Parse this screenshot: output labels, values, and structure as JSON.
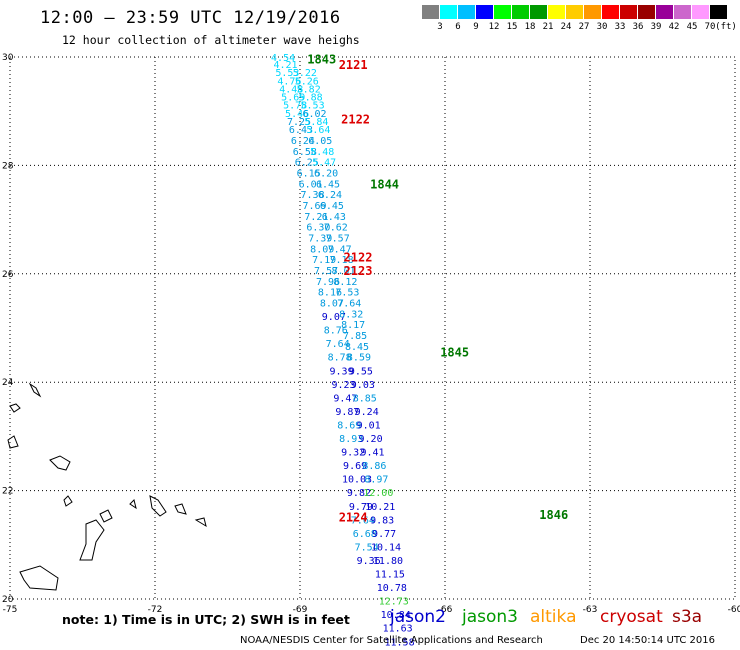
{
  "header": {
    "time_range": "12:00 — 23:59 UTC 12/19/2016",
    "subtitle": "12 hour collection of altimeter wave heighs"
  },
  "legend": {
    "unit": "(ft)",
    "colors": [
      "#808080",
      "#00ffff",
      "#00bfff",
      "#0000ff",
      "#00ff00",
      "#00cc00",
      "#009900",
      "#ffff00",
      "#ffcc00",
      "#ff9900",
      "#ff0000",
      "#cc0000",
      "#990000",
      "#990099",
      "#cc66cc",
      "#ff99ff",
      "#000000"
    ],
    "labels": [
      "3",
      "6",
      "9",
      "12",
      "15",
      "18",
      "21",
      "24",
      "27",
      "30",
      "33",
      "36",
      "39",
      "42",
      "45",
      "70"
    ]
  },
  "axes": {
    "x_ticks": [
      "-75",
      "-72",
      "-69",
      "-66",
      "-63",
      "-60"
    ],
    "y_ticks": [
      "30",
      "28",
      "26",
      "24",
      "22",
      "20"
    ]
  },
  "tracks": [
    {
      "sat": "jason2",
      "color_class": "track-a",
      "points": [
        {
          "lon": -69.35,
          "lat": 30.0,
          "v": "4.54"
        },
        {
          "lon": -69.3,
          "lat": 29.87,
          "v": "4.21"
        },
        {
          "lon": -69.26,
          "lat": 29.72,
          "v": "5.53"
        },
        {
          "lon": -69.22,
          "lat": 29.57,
          "v": "4.76"
        },
        {
          "lon": -69.18,
          "lat": 29.42,
          "v": "4.48"
        },
        {
          "lon": -69.14,
          "lat": 29.27,
          "v": "5.69"
        },
        {
          "lon": -69.1,
          "lat": 29.12,
          "v": "5.78"
        },
        {
          "lon": -69.06,
          "lat": 28.97,
          "v": "5.46"
        },
        {
          "lon": -69.02,
          "lat": 28.82,
          "v": "7.25"
        },
        {
          "lon": -68.98,
          "lat": 28.67,
          "v": "6.43"
        },
        {
          "lon": -68.94,
          "lat": 28.47,
          "v": "6.24"
        },
        {
          "lon": -68.9,
          "lat": 28.27,
          "v": "6.58"
        },
        {
          "lon": -68.86,
          "lat": 28.07,
          "v": "6.25"
        },
        {
          "lon": -68.82,
          "lat": 27.87,
          "v": "6.15"
        },
        {
          "lon": -68.78,
          "lat": 27.67,
          "v": "6.01"
        },
        {
          "lon": -68.74,
          "lat": 27.47,
          "v": "7.38"
        },
        {
          "lon": -68.7,
          "lat": 27.27,
          "v": "7.69"
        },
        {
          "lon": -68.66,
          "lat": 27.07,
          "v": "7.21"
        },
        {
          "lon": -68.62,
          "lat": 26.87,
          "v": "6.30"
        },
        {
          "lon": -68.58,
          "lat": 26.67,
          "v": "7.39"
        },
        {
          "lon": -68.54,
          "lat": 26.47,
          "v": "8.09"
        },
        {
          "lon": -68.5,
          "lat": 26.27,
          "v": "7.19"
        },
        {
          "lon": -68.46,
          "lat": 26.07,
          "v": "7.57"
        },
        {
          "lon": -68.42,
          "lat": 25.87,
          "v": "7.96"
        },
        {
          "lon": -68.38,
          "lat": 25.67,
          "v": "8.16"
        },
        {
          "lon": -68.34,
          "lat": 25.47,
          "v": "8.07"
        },
        {
          "lon": -68.3,
          "lat": 25.22,
          "v": "9.07"
        },
        {
          "lon": -68.26,
          "lat": 24.97,
          "v": "8.76"
        },
        {
          "lon": -68.22,
          "lat": 24.72,
          "v": "7.64"
        },
        {
          "lon": -68.18,
          "lat": 24.47,
          "v": "8.78"
        },
        {
          "lon": -68.14,
          "lat": 24.22,
          "v": "9.39"
        },
        {
          "lon": -68.1,
          "lat": 23.97,
          "v": "9.23"
        },
        {
          "lon": -68.06,
          "lat": 23.72,
          "v": "9.47"
        },
        {
          "lon": -68.02,
          "lat": 23.47,
          "v": "9.87"
        },
        {
          "lon": -67.98,
          "lat": 23.22,
          "v": "8.69"
        },
        {
          "lon": -67.94,
          "lat": 22.97,
          "v": "8.93"
        },
        {
          "lon": -67.9,
          "lat": 22.72,
          "v": "9.32"
        },
        {
          "lon": -67.86,
          "lat": 22.47,
          "v": "9.69"
        },
        {
          "lon": -67.82,
          "lat": 22.22,
          "v": "10.03"
        },
        {
          "lon": -67.78,
          "lat": 21.97,
          "v": "9.82"
        },
        {
          "lon": -67.74,
          "lat": 21.72,
          "v": "9.79"
        },
        {
          "lon": -67.7,
          "lat": 21.47,
          "v": "7.64"
        },
        {
          "lon": -67.66,
          "lat": 21.22,
          "v": "6.68"
        },
        {
          "lon": -67.62,
          "lat": 20.97,
          "v": "7.54"
        },
        {
          "lon": -67.58,
          "lat": 20.72,
          "v": "9.36"
        }
      ]
    },
    {
      "sat": "jason3",
      "color_class": "track-b",
      "points": [
        {
          "lon": -68.9,
          "lat": 29.72,
          "v": "5.22"
        },
        {
          "lon": -68.86,
          "lat": 29.57,
          "v": "5.26"
        },
        {
          "lon": -68.82,
          "lat": 29.42,
          "v": "5.82"
        },
        {
          "lon": -68.78,
          "lat": 29.27,
          "v": "5.88"
        },
        {
          "lon": -68.74,
          "lat": 29.12,
          "v": "5.53"
        },
        {
          "lon": -68.7,
          "lat": 28.97,
          "v": "6.02"
        },
        {
          "lon": -68.66,
          "lat": 28.82,
          "v": "5.84"
        },
        {
          "lon": -68.62,
          "lat": 28.67,
          "v": "5.64"
        },
        {
          "lon": -68.58,
          "lat": 28.47,
          "v": "6.05"
        },
        {
          "lon": -68.54,
          "lat": 28.27,
          "v": "5.48"
        },
        {
          "lon": -68.5,
          "lat": 28.07,
          "v": "5.47"
        },
        {
          "lon": -68.46,
          "lat": 27.87,
          "v": "6.20"
        },
        {
          "lon": -68.42,
          "lat": 27.67,
          "v": "6.45"
        },
        {
          "lon": -68.38,
          "lat": 27.47,
          "v": "6.24"
        },
        {
          "lon": -68.34,
          "lat": 27.27,
          "v": "6.45"
        },
        {
          "lon": -68.3,
          "lat": 27.07,
          "v": "6.43"
        },
        {
          "lon": -68.26,
          "lat": 26.87,
          "v": "7.62"
        },
        {
          "lon": -68.22,
          "lat": 26.67,
          "v": "7.57"
        },
        {
          "lon": -68.18,
          "lat": 26.47,
          "v": "7.47"
        },
        {
          "lon": -68.14,
          "lat": 26.27,
          "v": "7.18"
        },
        {
          "lon": -68.1,
          "lat": 26.07,
          "v": "8.01"
        },
        {
          "lon": -68.06,
          "lat": 25.87,
          "v": "8.12"
        },
        {
          "lon": -68.02,
          "lat": 25.67,
          "v": "7.53"
        },
        {
          "lon": -67.98,
          "lat": 25.47,
          "v": "7.64"
        },
        {
          "lon": -67.94,
          "lat": 25.27,
          "v": "8.32"
        },
        {
          "lon": -67.9,
          "lat": 25.07,
          "v": "8.17"
        },
        {
          "lon": -67.86,
          "lat": 24.87,
          "v": "7.85"
        },
        {
          "lon": -67.82,
          "lat": 24.67,
          "v": "8.45"
        },
        {
          "lon": -67.78,
          "lat": 24.47,
          "v": "8.59"
        },
        {
          "lon": -67.74,
          "lat": 24.22,
          "v": "9.55"
        },
        {
          "lon": -67.7,
          "lat": 23.97,
          "v": "9.03"
        },
        {
          "lon": -67.66,
          "lat": 23.72,
          "v": "8.85"
        },
        {
          "lon": -67.62,
          "lat": 23.47,
          "v": "9.24"
        },
        {
          "lon": -67.58,
          "lat": 23.22,
          "v": "9.01"
        },
        {
          "lon": -67.54,
          "lat": 22.97,
          "v": "9.20"
        },
        {
          "lon": -67.5,
          "lat": 22.72,
          "v": "9.41"
        },
        {
          "lon": -67.46,
          "lat": 22.47,
          "v": "8.86"
        },
        {
          "lon": -67.42,
          "lat": 22.22,
          "v": "8.97"
        },
        {
          "lon": -67.38,
          "lat": 21.97,
          "v": "12.00"
        },
        {
          "lon": -67.34,
          "lat": 21.72,
          "v": "10.21"
        },
        {
          "lon": -67.3,
          "lat": 21.47,
          "v": "9.83"
        },
        {
          "lon": -67.26,
          "lat": 21.22,
          "v": "9.77"
        },
        {
          "lon": -67.22,
          "lat": 20.97,
          "v": "10.14"
        },
        {
          "lon": -67.18,
          "lat": 20.72,
          "v": "11.80"
        },
        {
          "lon": -67.14,
          "lat": 20.47,
          "v": "11.15"
        },
        {
          "lon": -67.1,
          "lat": 20.22,
          "v": "10.78"
        },
        {
          "lon": -67.06,
          "lat": 19.97,
          "v": "12.73"
        },
        {
          "lon": -67.02,
          "lat": 19.72,
          "v": "10.84"
        },
        {
          "lon": -66.98,
          "lat": 19.47,
          "v": "11.63"
        },
        {
          "lon": -66.94,
          "lat": 19.22,
          "v": "11.58"
        }
      ]
    }
  ],
  "time_labels": [
    {
      "t": "1843",
      "kind": "green"
    },
    {
      "t": "2121",
      "kind": "red"
    },
    {
      "t": "2122",
      "kind": "red"
    },
    {
      "t": "1844",
      "kind": "green"
    },
    {
      "t": "2122",
      "kind": "red"
    },
    {
      "t": "2123",
      "kind": "red"
    },
    {
      "t": "1845",
      "kind": "green"
    },
    {
      "t": "2124",
      "kind": "red"
    },
    {
      "t": "1846",
      "kind": "green"
    }
  ],
  "footer": {
    "note": "note: 1) Time is in UTC; 2) SWH is in feet",
    "satellites": [
      {
        "name": "jason2",
        "color": "#0000cc"
      },
      {
        "name": "jason3",
        "color": "#009900"
      },
      {
        "name": "altika",
        "color": "#ff9900"
      },
      {
        "name": "cryosat",
        "color": "#cc0000"
      },
      {
        "name": "s3a",
        "color": "#990000"
      }
    ],
    "credit": "NOAA/NESDIS Center for Satellite Applications and Research",
    "stamp": "Dec 20 14:50:14 UTC 2016"
  }
}
